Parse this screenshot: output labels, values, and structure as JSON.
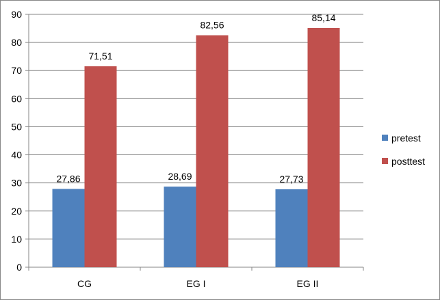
{
  "chart_data": {
    "type": "bar",
    "categories": [
      "CG",
      "EG I",
      "EG II"
    ],
    "series": [
      {
        "name": "pretest",
        "color": "#4F81BD",
        "values": [
          27.86,
          28.69,
          27.73
        ],
        "labels": [
          "27,86",
          "28,69",
          "27,73"
        ]
      },
      {
        "name": "posttest",
        "color": "#C0504D",
        "values": [
          71.51,
          82.56,
          85.14
        ],
        "labels": [
          "71,51",
          "82,56",
          "85,14"
        ]
      }
    ],
    "ylim": [
      0,
      90
    ],
    "yticks": [
      0,
      10,
      20,
      30,
      40,
      50,
      60,
      70,
      80,
      90
    ],
    "ytick_labels": [
      "0",
      "10",
      "20",
      "30",
      "40",
      "50",
      "60",
      "70",
      "80",
      "90"
    ],
    "grid": true,
    "legend_position": "right",
    "title": "",
    "xlabel": "",
    "ylabel": ""
  }
}
